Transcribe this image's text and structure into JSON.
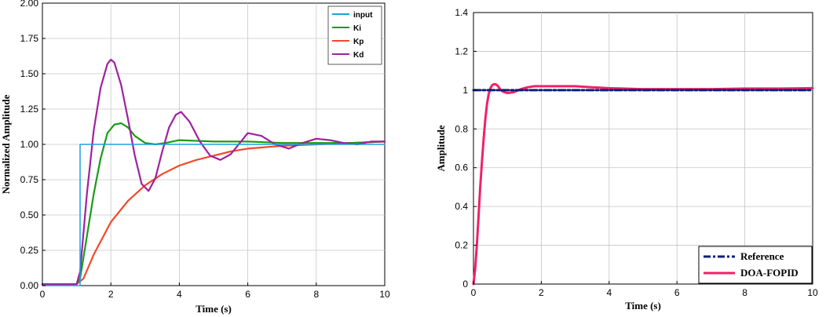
{
  "chart_data": [
    {
      "type": "line",
      "title": "",
      "xlabel": "Time (s)",
      "ylabel": "Normalized Amplitude",
      "xlim": [
        0,
        10
      ],
      "ylim": [
        0,
        2.0
      ],
      "x_ticks": [
        "0",
        "2",
        "4",
        "6",
        "8",
        "10"
      ],
      "y_ticks": [
        "0.00",
        "0.25",
        "0.50",
        "0.75",
        "1.00",
        "1.25",
        "1.50",
        "1.75",
        "2.00"
      ],
      "grid": true,
      "legend_position": "top-right",
      "series": [
        {
          "name": "input",
          "color": "#1f9fe0",
          "x": [
            0,
            1.1,
            1.1,
            10
          ],
          "y": [
            0,
            0,
            1.0,
            1.0
          ]
        },
        {
          "name": "Ki",
          "color": "#1a9a1a",
          "x": [
            0,
            1.0,
            1.1,
            1.3,
            1.5,
            1.7,
            1.9,
            2.1,
            2.3,
            2.5,
            2.7,
            3.0,
            3.3,
            3.6,
            4.0,
            5.0,
            6.0,
            7.0,
            8.0,
            9.0,
            10.0
          ],
          "y": [
            0.01,
            0.01,
            0.05,
            0.35,
            0.65,
            0.9,
            1.08,
            1.14,
            1.15,
            1.12,
            1.06,
            1.01,
            1.0,
            1.01,
            1.03,
            1.02,
            1.02,
            1.01,
            1.01,
            1.01,
            1.02
          ]
        },
        {
          "name": "Kp",
          "color": "#f04a2a",
          "x": [
            0,
            1.0,
            1.2,
            1.5,
            2.0,
            2.5,
            3.0,
            3.5,
            4.0,
            4.5,
            5.0,
            5.5,
            6.0,
            6.5,
            7.0,
            7.5,
            8.0,
            8.5,
            9.0,
            9.5,
            10.0
          ],
          "y": [
            0.01,
            0.01,
            0.05,
            0.22,
            0.45,
            0.6,
            0.71,
            0.79,
            0.85,
            0.89,
            0.92,
            0.95,
            0.97,
            0.98,
            0.99,
            0.995,
            1.0,
            1.005,
            1.01,
            1.015,
            1.02
          ]
        },
        {
          "name": "Kd",
          "color": "#a020a0",
          "x": [
            0,
            1.0,
            1.1,
            1.3,
            1.5,
            1.7,
            1.9,
            2.0,
            2.1,
            2.3,
            2.5,
            2.7,
            2.9,
            3.1,
            3.3,
            3.5,
            3.7,
            3.9,
            4.05,
            4.3,
            4.6,
            4.9,
            5.2,
            5.5,
            5.8,
            6.0,
            6.4,
            6.8,
            7.2,
            7.6,
            8.0,
            8.4,
            8.8,
            9.2,
            9.6,
            10.0
          ],
          "y": [
            0.01,
            0.01,
            0.1,
            0.65,
            1.1,
            1.4,
            1.57,
            1.6,
            1.58,
            1.42,
            1.18,
            0.92,
            0.72,
            0.67,
            0.76,
            0.95,
            1.12,
            1.21,
            1.23,
            1.16,
            1.02,
            0.92,
            0.89,
            0.93,
            1.02,
            1.08,
            1.06,
            1.0,
            0.97,
            1.01,
            1.04,
            1.03,
            1.01,
            1.0,
            1.02,
            1.02
          ]
        }
      ]
    },
    {
      "type": "line",
      "title": "",
      "xlabel": "Time (s)",
      "ylabel": "Amplitude",
      "xlim": [
        0,
        10
      ],
      "ylim": [
        0,
        1.4
      ],
      "x_ticks": [
        "0",
        "2",
        "4",
        "6",
        "8",
        "10"
      ],
      "y_ticks": [
        "0",
        "0.2",
        "0.4",
        "0.6",
        "0.8",
        "1",
        "1.2",
        "1.4"
      ],
      "grid": true,
      "legend_position": "bottom-right",
      "series": [
        {
          "name": "Reference",
          "color": "#0d1f7a",
          "dash": "dash-dot",
          "x": [
            0,
            10
          ],
          "y": [
            1.0,
            1.0
          ]
        },
        {
          "name": "DOA-FOPID",
          "color": "#f0206a",
          "x": [
            0,
            0.05,
            0.1,
            0.15,
            0.2,
            0.25,
            0.3,
            0.35,
            0.4,
            0.45,
            0.5,
            0.55,
            0.6,
            0.65,
            0.7,
            0.75,
            0.8,
            0.9,
            1.0,
            1.2,
            1.4,
            1.6,
            1.8,
            2.0,
            2.5,
            3.0,
            3.5,
            4.0,
            5.0,
            6.0,
            7.0,
            8.0,
            9.0,
            10.0
          ],
          "y": [
            0,
            0.08,
            0.2,
            0.35,
            0.5,
            0.63,
            0.75,
            0.85,
            0.93,
            0.98,
            1.01,
            1.025,
            1.03,
            1.03,
            1.025,
            1.015,
            1.0,
            0.99,
            0.985,
            0.99,
            1.005,
            1.015,
            1.02,
            1.02,
            1.02,
            1.02,
            1.015,
            1.01,
            1.005,
            1.005,
            1.005,
            1.008,
            1.008,
            1.01
          ]
        }
      ]
    }
  ]
}
